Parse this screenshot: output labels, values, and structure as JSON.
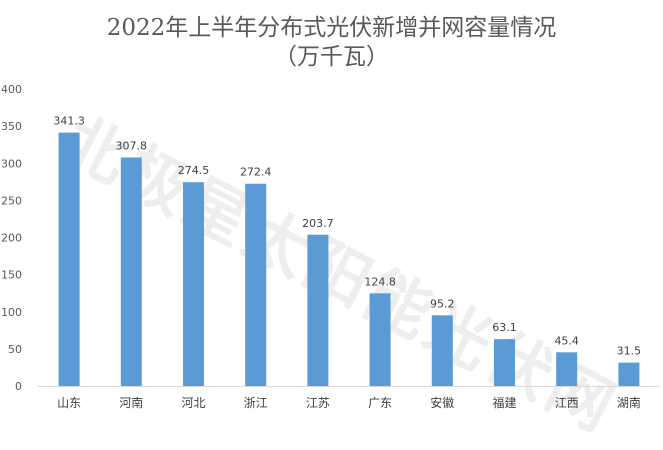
{
  "chart_data": {
    "type": "bar",
    "title": "2022年上半年分布式光伏新增并网容量情况",
    "subtitle": "（万千瓦）",
    "categories": [
      "山东",
      "河南",
      "河北",
      "浙江",
      "江苏",
      "广东",
      "安徽",
      "福建",
      "江西",
      "湖南"
    ],
    "values": [
      341.3,
      307.8,
      274.5,
      272.4,
      203.7,
      124.8,
      95.2,
      63.1,
      45.4,
      31.5
    ],
    "data_labels": [
      "341.3",
      "307.8",
      "274.5",
      "272.4",
      "203.7",
      "124.8",
      "95.2",
      "63.1",
      "45.4",
      "31.5"
    ],
    "y_ticks": [
      0,
      50,
      100,
      150,
      200,
      250,
      300,
      350,
      400
    ],
    "ylim": [
      0,
      400
    ],
    "bar_color": "#5b9bd5",
    "grid": false,
    "legend": "none"
  },
  "watermark": "北极星太阳能光伏网"
}
